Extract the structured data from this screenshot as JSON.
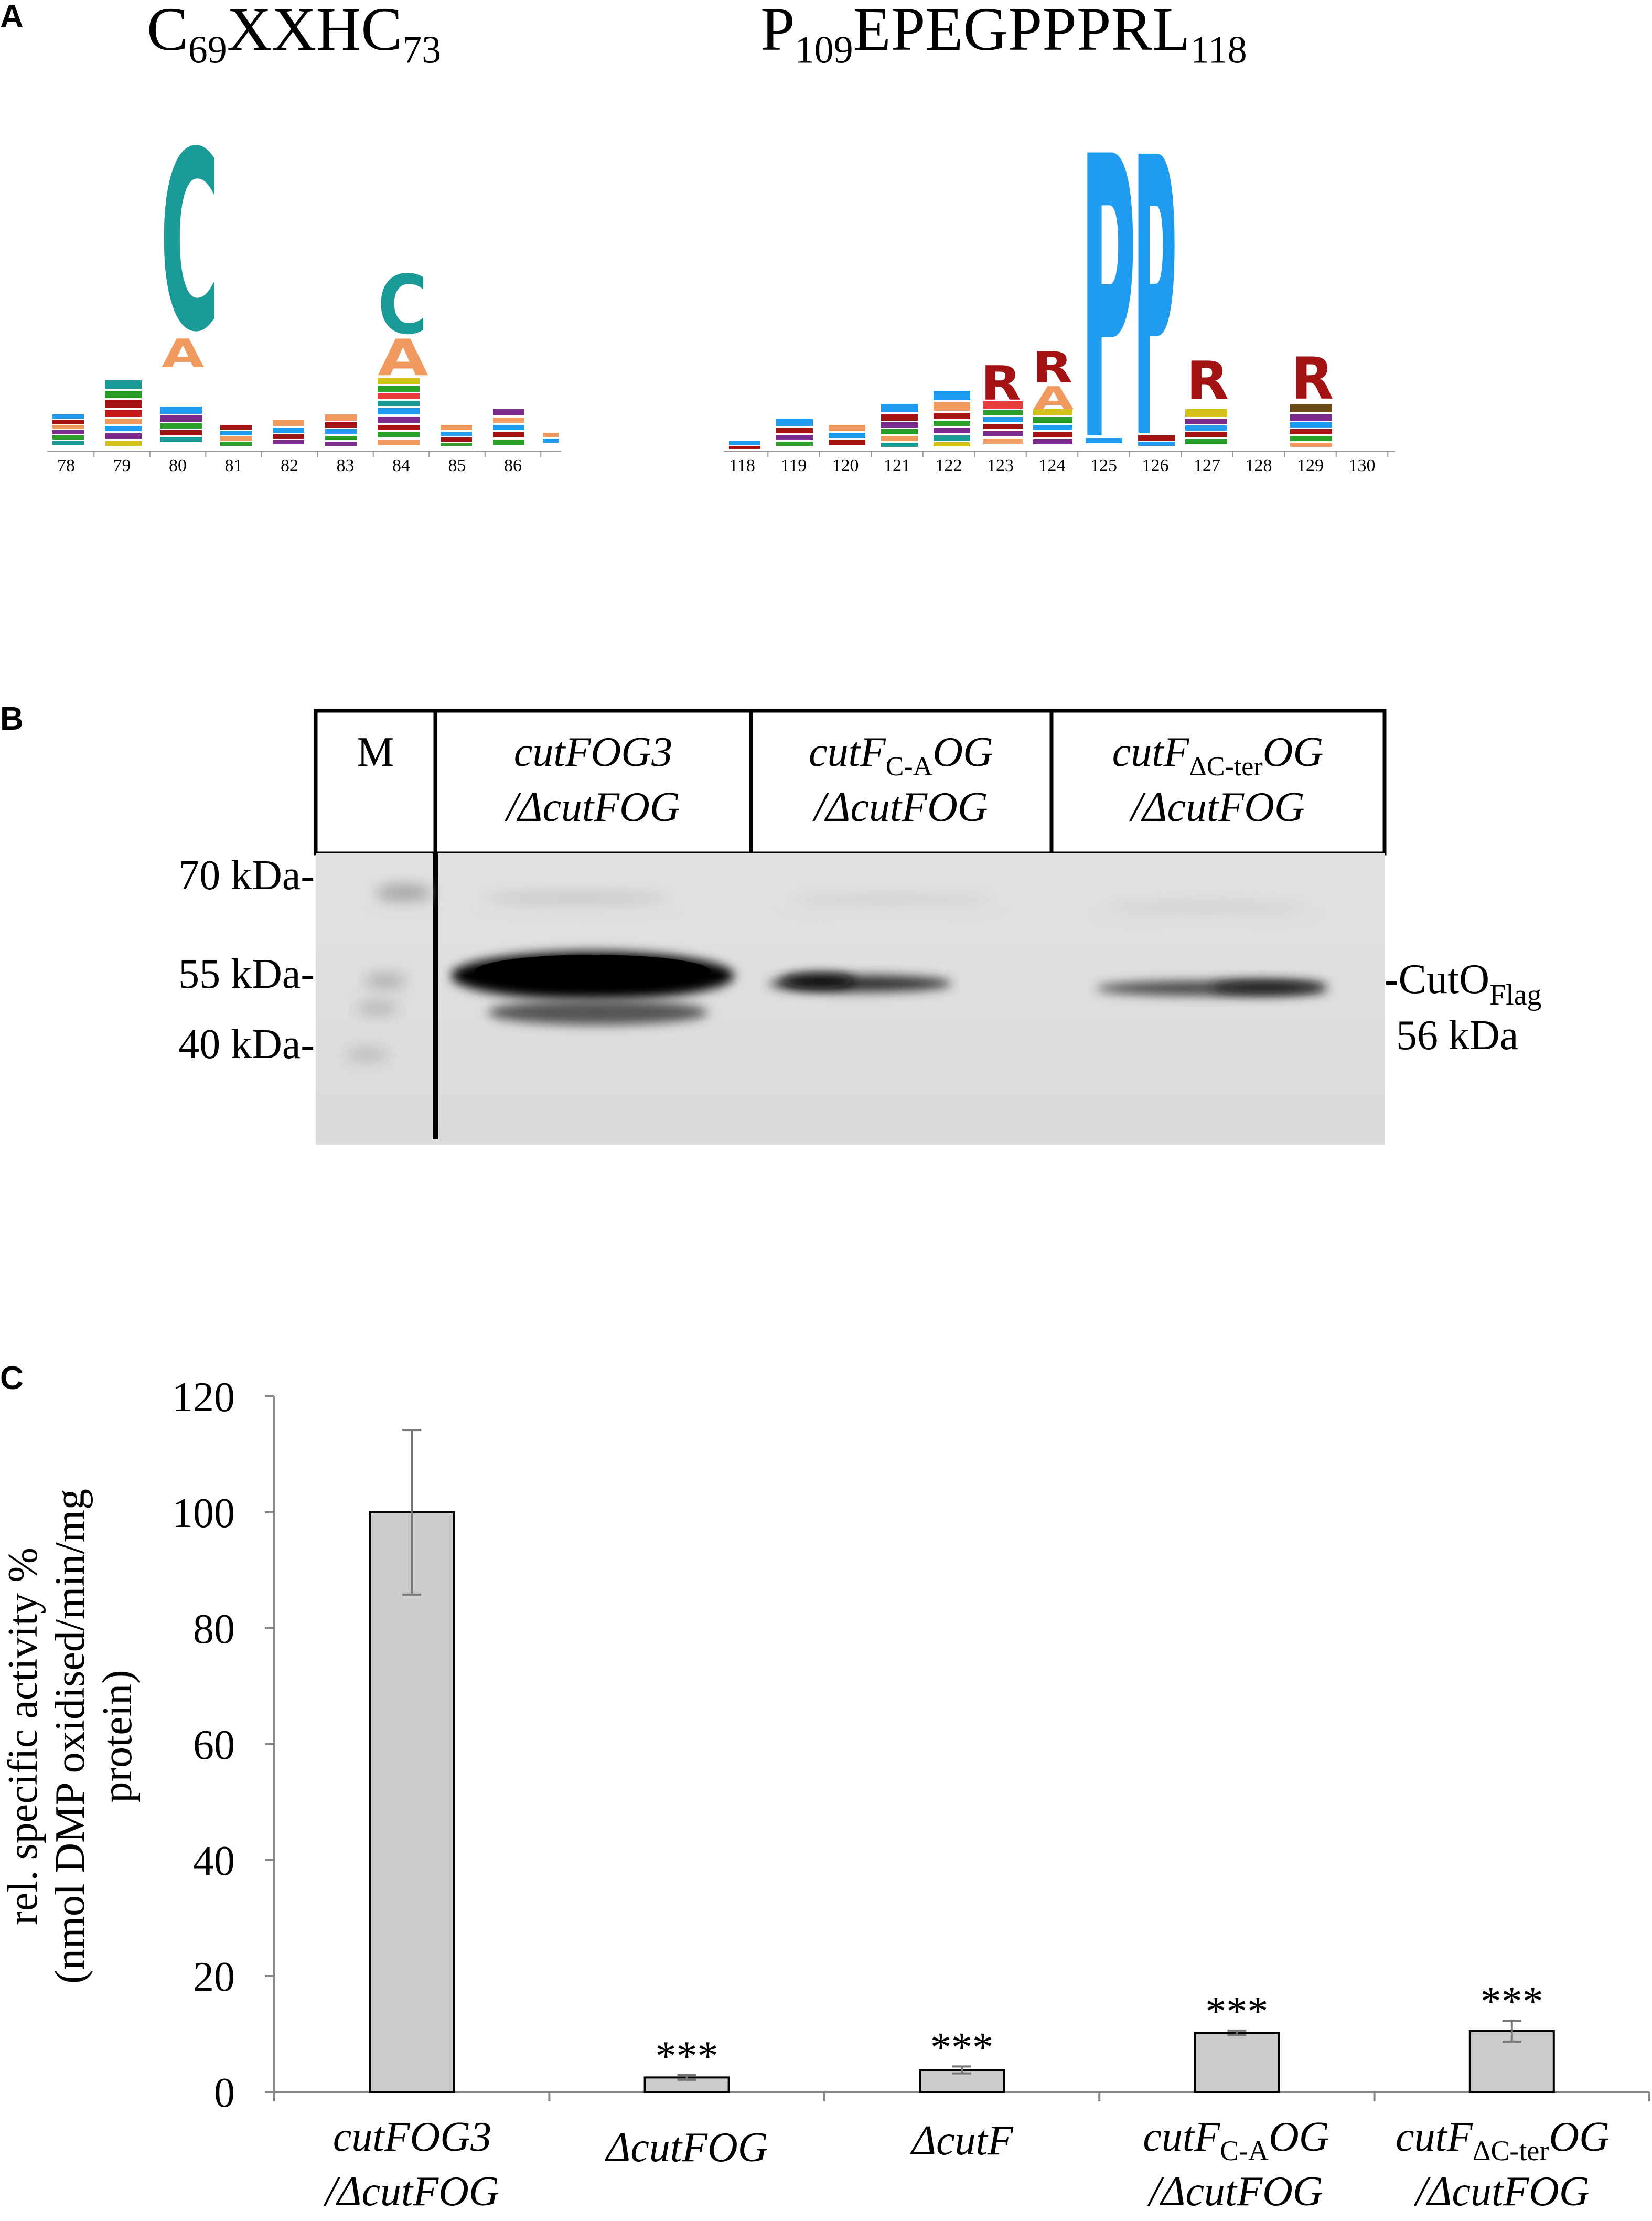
{
  "panels": {
    "a": {
      "letter": "A",
      "motif1": {
        "residue_start": "C",
        "num_start": "69",
        "middle": "XXHC",
        "num_end": "73"
      },
      "motif2": {
        "residue_start": "P",
        "num_start": "109",
        "middle": "EPEGPPPRL",
        "num_end": "118"
      },
      "logo1_positions": [
        "78",
        "79",
        "80",
        "81",
        "82",
        "83",
        "84",
        "85",
        "86"
      ],
      "logo2_positions": [
        "118",
        "119",
        "120",
        "121",
        "122",
        "123",
        "124",
        "125",
        "126",
        "127",
        "128",
        "129",
        "130"
      ],
      "logo1_major_letters": [
        "C",
        "A",
        "C",
        "A"
      ],
      "logo2_major_letters": [
        "R",
        "R",
        "A",
        "P",
        "P",
        "R",
        "R"
      ],
      "colors": {
        "teal": "#1a9a96",
        "orange": "#f19a60",
        "blue": "#1f9bef",
        "darkred": "#a31313"
      }
    },
    "b": {
      "letter": "B",
      "lanes": [
        {
          "line1": "M",
          "line2": ""
        },
        {
          "line1": "cutFOG3",
          "line2": "/ΔcutFOG"
        },
        {
          "line1_pre": "cutF",
          "line1_sub": "C-A",
          "line1_post": "OG",
          "line2": "/ΔcutFOG"
        },
        {
          "line1_pre": "cutF",
          "line1_sub": "ΔC-ter",
          "line1_post": "OG",
          "line2": "/ΔcutFOG"
        }
      ],
      "markers": [
        "70 kDa-",
        "55 kDa-",
        "40 kDa-"
      ],
      "band_label_main": "-CutO",
      "band_label_sub": "Flag",
      "band_size": "56 kDa"
    },
    "c": {
      "letter": "C",
      "chart_data": {
        "type": "bar",
        "ylabel_line1": "rel. specific activity %",
        "ylabel_line2": "(nmol DMP oxidised/min/mg",
        "ylabel_line3": "protein)",
        "ylim": [
          0,
          120
        ],
        "yticks": [
          "0",
          "20",
          "40",
          "60",
          "80",
          "100",
          "120"
        ],
        "categories": [
          {
            "line1": "cutFOG3",
            "line2": "/ΔcutFOG"
          },
          {
            "line1": "ΔcutFOG",
            "line2": ""
          },
          {
            "line1": "ΔcutF",
            "line2": ""
          },
          {
            "line1_pre": "cutF",
            "line1_sub": "C-A",
            "line1_post": "OG",
            "line2": "/ΔcutFOG"
          },
          {
            "line1_pre": "cutF",
            "line1_sub": "ΔC-ter",
            "line1_post": "OG",
            "line2": "/ΔcutFOG"
          }
        ],
        "values": [
          100,
          2.5,
          3.8,
          10.2,
          10.5
        ],
        "errors": [
          14.2,
          0.4,
          0.6,
          0.4,
          1.8
        ],
        "significance": [
          "",
          "***",
          "***",
          "***",
          "***"
        ],
        "bar_color": "#cccccc",
        "grid": false
      }
    }
  }
}
